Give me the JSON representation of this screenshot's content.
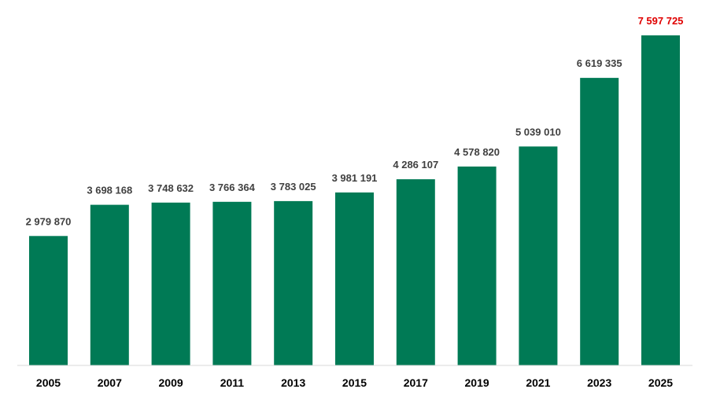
{
  "chart_data": {
    "type": "bar",
    "title": "",
    "xlabel": "",
    "ylabel": "",
    "categories": [
      "2005",
      "2007",
      "2009",
      "2011",
      "2013",
      "2015",
      "2017",
      "2019",
      "2021",
      "2023",
      "2025"
    ],
    "values": [
      2979870,
      3698168,
      3748632,
      3766364,
      3783025,
      3981191,
      4286107,
      4578820,
      5039010,
      6619335,
      7597725
    ],
    "value_labels": [
      "2 979 870",
      "3 698 168",
      "3 748 632",
      "3 766 364",
      "3 783 025",
      "3 981 191",
      "4 286 107",
      "4 578 820",
      "5 039 010",
      "6 619 335",
      "7 597 725"
    ],
    "ylim": [
      0,
      7597725
    ],
    "grid": false,
    "legend": "none",
    "highlight_index": 10,
    "colors": {
      "bar": "#007a55",
      "label": "#404040",
      "highlight_label": "#e00000",
      "axis": "#d9d9d9",
      "tick": "#000000"
    }
  }
}
